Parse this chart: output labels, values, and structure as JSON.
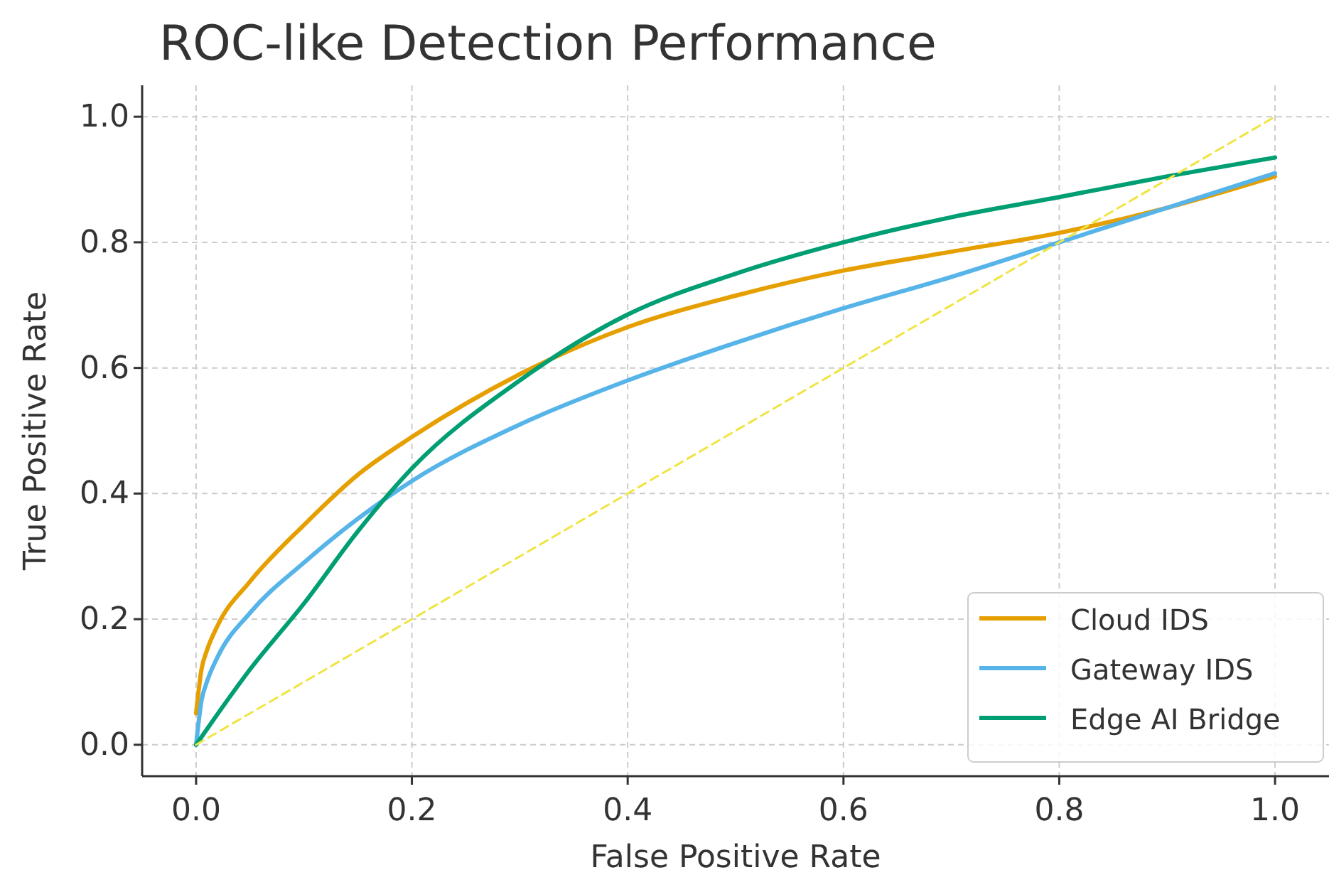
{
  "chart_data": {
    "type": "line",
    "title": "ROC-like Detection Performance",
    "xlabel": "False Positive Rate",
    "ylabel": "True Positive Rate",
    "xlim": [
      -0.05,
      1.05
    ],
    "ylim": [
      -0.05,
      1.05
    ],
    "xticks": [
      {
        "value": 0,
        "label": "0.0"
      },
      {
        "value": 0.2,
        "label": "0.2"
      },
      {
        "value": 0.4,
        "label": "0.4"
      },
      {
        "value": 0.6,
        "label": "0.6"
      },
      {
        "value": 0.8,
        "label": "0.8"
      },
      {
        "value": 1,
        "label": "1.0"
      }
    ],
    "yticks": [
      {
        "value": 0,
        "label": "0.0"
      },
      {
        "value": 0.2,
        "label": "0.2"
      },
      {
        "value": 0.4,
        "label": "0.4"
      },
      {
        "value": 0.6,
        "label": "0.6"
      },
      {
        "value": 0.8,
        "label": "0.8"
      },
      {
        "value": 1,
        "label": "1.0"
      }
    ],
    "grid": true,
    "legend": "bottom right",
    "series": [
      {
        "name": "Cloud IDS",
        "color": "#e69f00",
        "x": [
          0,
          0.005,
          0.01,
          0.02,
          0.05,
          0.1,
          0.15,
          0.2,
          0.3,
          0.4,
          0.5,
          0.6,
          0.7,
          0.8,
          0.9,
          1
        ],
        "values": [
          0.05,
          0.12,
          0.15,
          0.19,
          0.26,
          0.35,
          0.43,
          0.49,
          0.59,
          0.665,
          0.715,
          0.755,
          0.785,
          0.815,
          0.855,
          0.905
        ]
      },
      {
        "name": "Gateway IDS",
        "color": "#56b4e9",
        "x": [
          0,
          0.005,
          0.01,
          0.02,
          0.05,
          0.1,
          0.15,
          0.2,
          0.3,
          0.4,
          0.5,
          0.6,
          0.7,
          0.8,
          0.9,
          1
        ],
        "values": [
          0,
          0.07,
          0.1,
          0.14,
          0.21,
          0.29,
          0.36,
          0.42,
          0.51,
          0.58,
          0.64,
          0.695,
          0.745,
          0.8,
          0.855,
          0.91
        ]
      },
      {
        "name": "Edge AI Bridge",
        "color": "#009e73",
        "x": [
          0,
          0.05,
          0.1,
          0.15,
          0.2,
          0.3,
          0.4,
          0.5,
          0.6,
          0.7,
          0.8,
          0.9,
          1
        ],
        "values": [
          0,
          0.12,
          0.225,
          0.34,
          0.44,
          0.58,
          0.685,
          0.75,
          0.8,
          0.84,
          0.872,
          0.905,
          0.935
        ]
      },
      {
        "color": "#f0e442",
        "line_style": "dashed",
        "x": [
          0,
          1
        ],
        "values": [
          0,
          1
        ]
      }
    ]
  }
}
